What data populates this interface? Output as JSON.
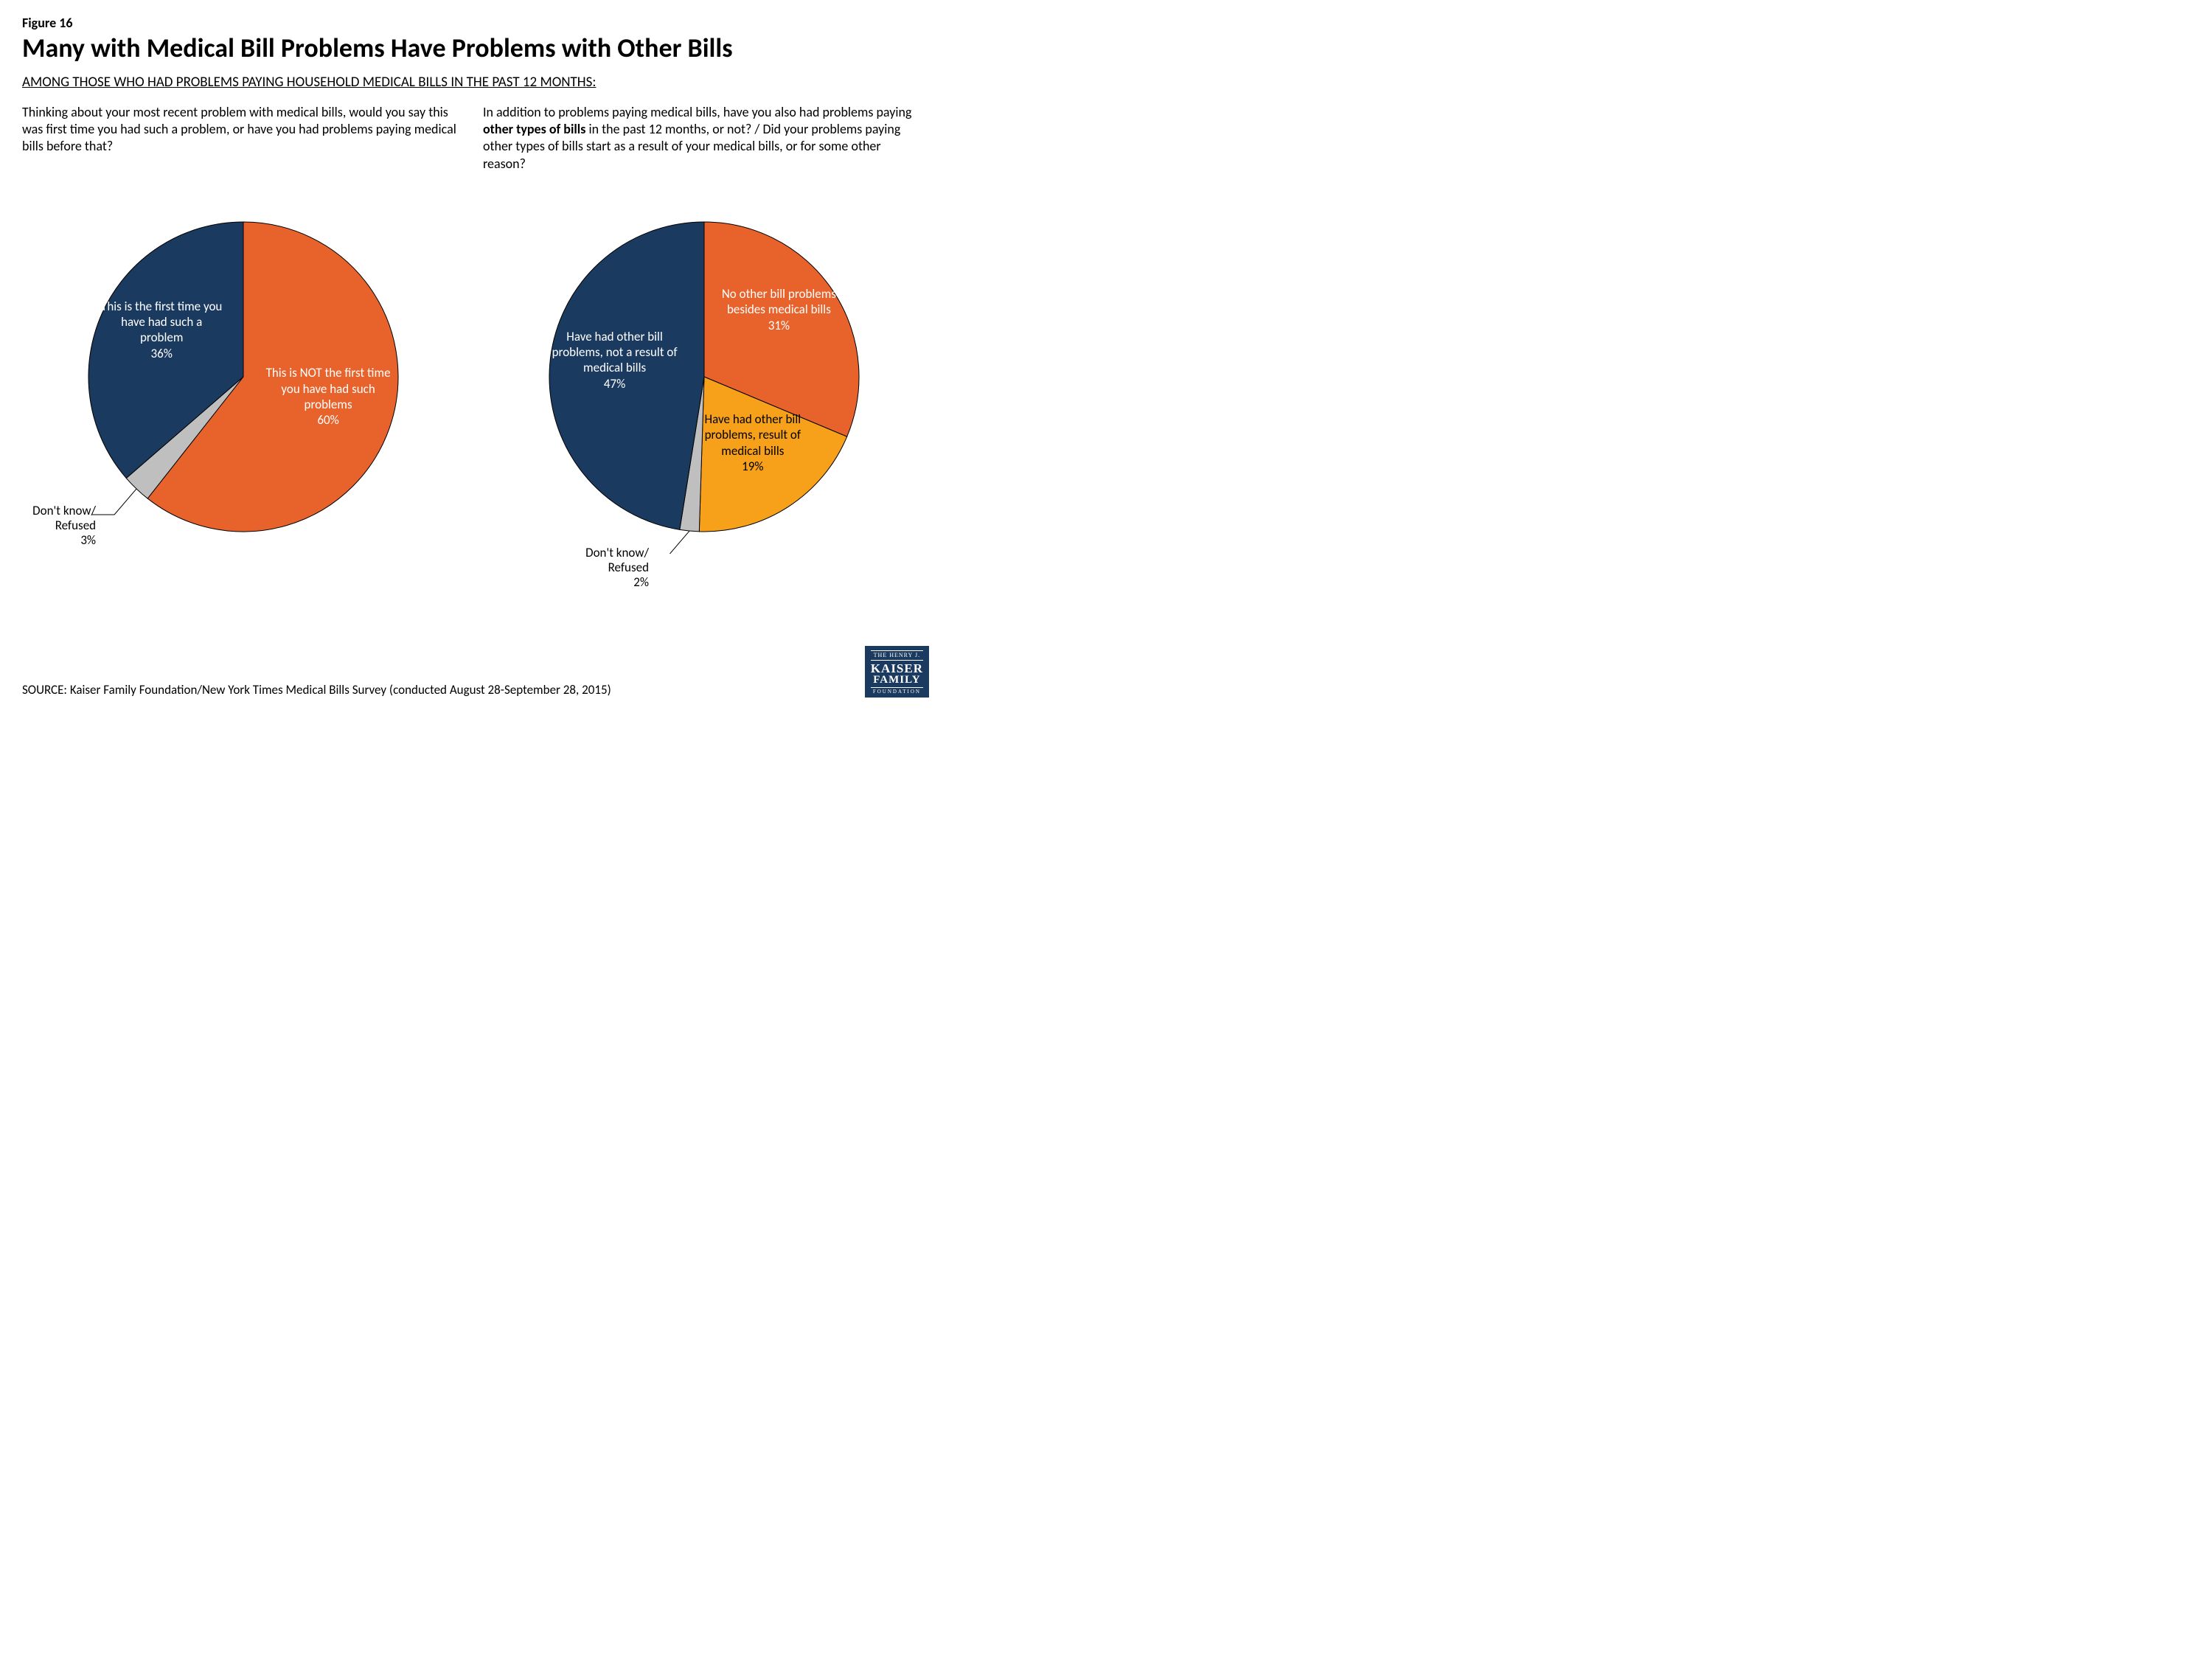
{
  "figure_label": "Figure 16",
  "title": "Many with Medical Bill Problems Have Problems with Other Bills",
  "subtitle": "AMONG THOSE WHO HAD PROBLEMS PAYING HOUSEHOLD MEDICAL BILLS IN THE PAST 12 MONTHS:",
  "source": "SOURCE: Kaiser Family Foundation/New York Times Medical Bills Survey (conducted August 28-September 28, 2015)",
  "logo": {
    "line1": "THE HENRY J.",
    "line2": "KAISER",
    "line3": "FAMILY",
    "line4": "FOUNDATION"
  },
  "chart_left": {
    "type": "pie",
    "question_prefix": "Thinking about your most recent problem with medical bills, would you say this was first time you had such a problem, or have you had problems paying medical bills before that?",
    "stroke": "#000000",
    "stroke_width": 1,
    "slices": [
      {
        "label": "This is NOT the first time you have had such problems",
        "pct": 60,
        "color": "#e8632c",
        "text_color": "#ffffff"
      },
      {
        "label": "Don't know/ Refused",
        "pct": 3,
        "color": "#bfbfbf",
        "text_color": "#000000",
        "external": true
      },
      {
        "label": "This is the first time you have had such a problem",
        "pct": 36,
        "color": "#1b3a5f",
        "text_color": "#ffffff"
      }
    ]
  },
  "chart_right": {
    "type": "pie",
    "question_prefix": "In addition to problems paying medical bills, have you also had problems paying ",
    "question_bold": "other types of bills",
    "question_suffix": " in the past 12 months, or not? / Did your problems paying other types of bills start as a result of your medical bills, or for some other reason?",
    "stroke": "#000000",
    "stroke_width": 1,
    "slices": [
      {
        "label": "No other bill problems besides medical bills",
        "pct": 31,
        "color": "#e8632c",
        "text_color": "#ffffff"
      },
      {
        "label": "Have had other bill problems, result of medical bills",
        "pct": 19,
        "color": "#f7a11a",
        "text_color": "#000000"
      },
      {
        "label": "Don't know/ Refused",
        "pct": 2,
        "color": "#bfbfbf",
        "text_color": "#000000",
        "external": true
      },
      {
        "label": "Have had other bill problems, not a result of medical bills",
        "pct": 47,
        "color": "#1b3a5f",
        "text_color": "#ffffff"
      }
    ]
  }
}
